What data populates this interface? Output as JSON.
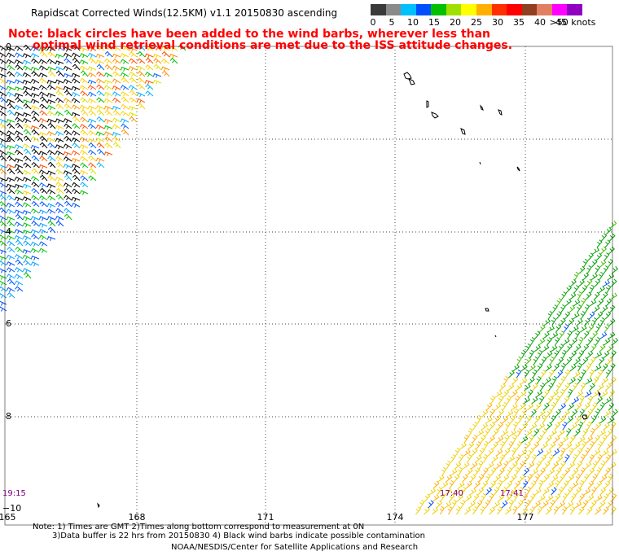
{
  "title": "Rapidscat Corrected Winds(12.5KM) v1.1 20150830 ascending",
  "note_line1": "Note: black circles have been added to the wind barbs, wherever less than",
  "note_line2": "optimal wind retrieval conditions are met due to the ISS attitude changes.",
  "legend": {
    "colors": [
      "#3a3a3a",
      "#8a8a8a",
      "#00c0ff",
      "#0050ff",
      "#00c000",
      "#a0e000",
      "#ffff00",
      "#ffb000",
      "#ff3000",
      "#ff0000",
      "#904020",
      "#e08060",
      "#ff00ff",
      "#9000c0"
    ],
    "labels": [
      "0",
      "5",
      "10",
      "15",
      "20",
      "25",
      "30",
      "35",
      "40",
      "45",
      ">50 knots"
    ]
  },
  "x_ticks": [
    "165",
    "168",
    "171",
    "174",
    "177"
  ],
  "y_ticks": [
    "0",
    "2",
    "4",
    "6",
    "8",
    "−10"
  ],
  "times": [
    "19:15",
    "17:40",
    "17:41"
  ],
  "footer": {
    "line1": "Note: 1) Times are GMT 2)Times along bottom correspond to measurement at 0N",
    "line2": "3)Data buffer is 22 hrs from 20150830 4) Black wind barbs indicate possible contamination",
    "line3": "NOAA/NESDIS/Center for Satellite Applications and Research"
  }
}
